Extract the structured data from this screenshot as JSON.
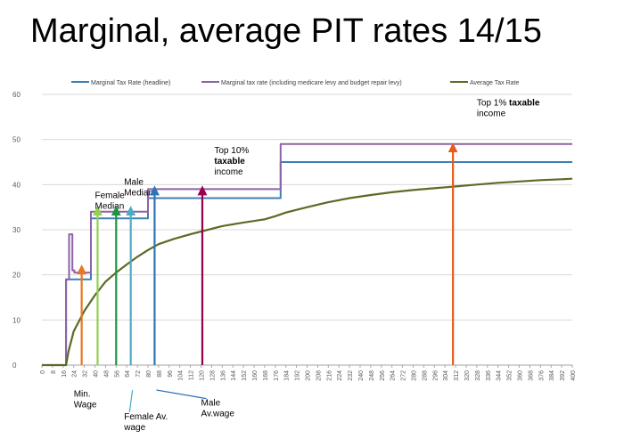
{
  "slide": {
    "title": "Marginal, average PIT rates 14/15"
  },
  "chart_data": {
    "type": "line",
    "title": "Marginal, average PIT rates 14/15",
    "xlabel": "",
    "ylabel": "",
    "xlim": [
      0,
      400
    ],
    "ylim": [
      0,
      60
    ],
    "x_ticks": [
      0,
      8,
      16,
      24,
      32,
      40,
      48,
      56,
      64,
      72,
      80,
      88,
      96,
      104,
      112,
      120,
      128,
      136,
      144,
      152,
      160,
      168,
      176,
      184,
      192,
      200,
      208,
      216,
      224,
      232,
      240,
      248,
      256,
      264,
      272,
      280,
      288,
      296,
      304,
      312,
      320,
      328,
      336,
      344,
      352,
      360,
      368,
      376,
      384,
      392,
      400
    ],
    "y_ticks": [
      0,
      10,
      20,
      30,
      40,
      50,
      60
    ],
    "legend_position": "top",
    "series": [
      {
        "name": "Marginal Tax Rate (headline)",
        "color": "#3f7fb5",
        "step": true,
        "points": [
          [
            0,
            0
          ],
          [
            18.2,
            0
          ],
          [
            18.2,
            19
          ],
          [
            37,
            19
          ],
          [
            37,
            32.5
          ],
          [
            80,
            32.5
          ],
          [
            80,
            37
          ],
          [
            180,
            37
          ],
          [
            180,
            45
          ],
          [
            400,
            45
          ]
        ]
      },
      {
        "name": "Marginal tax rate (including medicare levy and budget repair levy)",
        "color": "#8e62a8",
        "step": true,
        "points": [
          [
            0,
            0
          ],
          [
            18.2,
            0
          ],
          [
            18.2,
            19
          ],
          [
            20.5,
            19
          ],
          [
            20.5,
            29
          ],
          [
            23,
            29
          ],
          [
            23,
            21
          ],
          [
            24.5,
            21
          ],
          [
            24.5,
            20.5
          ],
          [
            37,
            20.5
          ],
          [
            37,
            34
          ],
          [
            80,
            34
          ],
          [
            80,
            39
          ],
          [
            180,
            39
          ],
          [
            180,
            49
          ],
          [
            400,
            49
          ]
        ]
      },
      {
        "name": "Average Tax Rate",
        "color": "#5b6b26",
        "step": false,
        "points": [
          [
            0,
            0
          ],
          [
            18.2,
            0
          ],
          [
            20,
            3
          ],
          [
            24,
            7.5
          ],
          [
            32,
            12
          ],
          [
            40,
            15.5
          ],
          [
            48,
            18.5
          ],
          [
            56,
            20.5
          ],
          [
            64,
            22.3
          ],
          [
            72,
            24
          ],
          [
            80,
            25.5
          ],
          [
            88,
            26.8
          ],
          [
            100,
            28
          ],
          [
            112,
            29
          ],
          [
            120,
            29.6
          ],
          [
            136,
            30.8
          ],
          [
            152,
            31.6
          ],
          [
            168,
            32.3
          ],
          [
            176,
            33
          ],
          [
            184,
            33.8
          ],
          [
            200,
            35
          ],
          [
            216,
            36.1
          ],
          [
            232,
            37
          ],
          [
            248,
            37.7
          ],
          [
            264,
            38.3
          ],
          [
            280,
            38.8
          ],
          [
            296,
            39.2
          ],
          [
            312,
            39.6
          ],
          [
            328,
            40
          ],
          [
            344,
            40.4
          ],
          [
            360,
            40.7
          ],
          [
            376,
            41
          ],
          [
            392,
            41.2
          ],
          [
            400,
            41.3
          ]
        ]
      }
    ],
    "annotations": [
      {
        "name": "min-wage",
        "label": "Min.\nWage",
        "x": 30,
        "y": 22,
        "color": "#e87722",
        "label_side": "below",
        "label_x": 24,
        "label_y": -7,
        "pointer": false
      },
      {
        "name": "female-median",
        "label": "Female\nMedian",
        "x": 42,
        "y": 35,
        "color": "#92d050",
        "label_side": "above",
        "label_x": 40,
        "label_y": 37,
        "pointer": false
      },
      {
        "name": "male-median",
        "label": "Male\nMedian",
        "x": 56,
        "y": 35,
        "color": "#1a9641",
        "label_side": "above",
        "label_x": 62,
        "label_y": 40,
        "pointer": false
      },
      {
        "name": "female-av-wage",
        "label": "Female Av.\nwage",
        "x": 67,
        "y": 35,
        "color": "#4bacc6",
        "label_side": "below",
        "label_x": 62,
        "label_y": -12,
        "pointer": true
      },
      {
        "name": "male-av-wage",
        "label": "Male\nAv.wage",
        "x": 85,
        "y": 39.5,
        "color": "#2e75b6",
        "label_side": "below",
        "label_x": 120,
        "label_y": -9,
        "pointer": true
      },
      {
        "name": "top-10",
        "label": "Top 10%\ntaxable\nincome",
        "label_bold_line": 1,
        "x": 121,
        "y": 39.5,
        "color": "#99004c",
        "label_side": "above",
        "label_x": 130,
        "label_y": 47,
        "pointer": false
      },
      {
        "name": "top-1",
        "label": "Top 1% taxable\nincome",
        "label_bold_word": "taxable",
        "x": 310,
        "y": 49,
        "color": "#e65c1a",
        "label_side": "above",
        "label_x": 328,
        "label_y": 57.5,
        "pointer": false
      }
    ]
  }
}
